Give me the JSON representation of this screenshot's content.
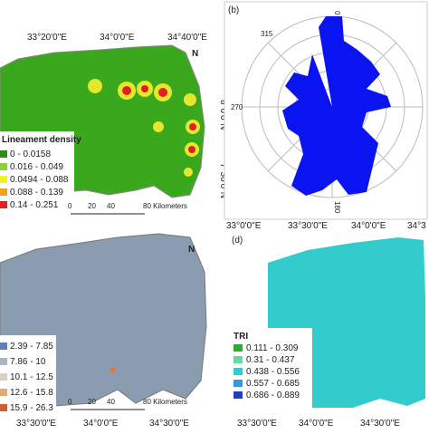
{
  "panel_a": {
    "lon_labels": [
      "33°20'0\"E",
      "34°0'0\"E",
      "34°40'0\"E"
    ],
    "lat_labels": [
      "8°0'0\"N",
      "7°30'0\"N"
    ],
    "legend": {
      "title": "Lineament density",
      "items": [
        "0 - 0.0158",
        "0.016 - 0.049",
        "0.0494 - 0.088",
        "0.088 - 0.139",
        "0.14 - 0.251"
      ]
    },
    "scale_bar": [
      "0",
      "20",
      "40",
      "80 Kilometers"
    ],
    "north": "N"
  },
  "panel_b": {
    "label": "(b)",
    "angle_labels": [
      "0",
      "315",
      "270",
      "180"
    ]
  },
  "panel_c": {
    "lon_labels": [
      "33°30'0\"E",
      "34°0'0\"E",
      "34°30'0\"E"
    ],
    "legend": {
      "items": [
        "2.39 - 7.85",
        "7.86 - 10",
        "10.1 - 12.5",
        "12.6 - 15.8",
        "15.9 - 26.3"
      ]
    },
    "scale_bar": [
      "0",
      "20",
      "40",
      "80 Kilometers"
    ],
    "north": "N"
  },
  "panel_d": {
    "label": "(d)",
    "top_lon_labels": [
      "33°0'0\"E",
      "33°30'0\"E",
      "34°0'0\"E",
      "34°3"
    ],
    "lon_labels": [
      "33°30'0\"E",
      "34°0'0\"E",
      "34°30'0\"E"
    ],
    "legend": {
      "title": "TRI",
      "items": [
        "0.111 - 0.309",
        "0.31 - 0.437",
        "0.438 - 0.556",
        "0.557 - 0.685",
        "0.686 - 0.889"
      ]
    }
  }
}
